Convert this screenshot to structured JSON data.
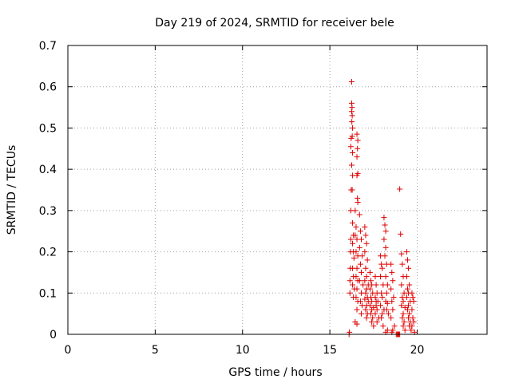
{
  "chart_data": {
    "type": "scatter",
    "title": "Day 219 of 2024, SRMTID for receiver bele",
    "xlabel": "GPS time / hours",
    "ylabel": "SRMTID / TECUs",
    "xlim": [
      0,
      24
    ],
    "ylim": [
      0,
      0.7
    ],
    "xticks": [
      0,
      5,
      10,
      15,
      20
    ],
    "xtick_labels": [
      "0",
      "5",
      "10",
      "15",
      "20"
    ],
    "yticks": [
      0,
      0.1,
      0.2,
      0.3,
      0.4,
      0.5,
      0.6,
      0.7
    ],
    "ytick_labels": [
      "0",
      "0.1",
      "0.2",
      "0.3",
      "0.4",
      "0.5",
      "0.6",
      "0.7"
    ],
    "grid": true,
    "marker": "+",
    "color": "#e00000",
    "series": [
      {
        "name": "bele",
        "points": [
          [
            16.1,
            0.0
          ],
          [
            16.12,
            0.005
          ],
          [
            16.15,
            0.1
          ],
          [
            16.15,
            0.13
          ],
          [
            16.17,
            0.16
          ],
          [
            16.18,
            0.2
          ],
          [
            16.2,
            0.23
          ],
          [
            16.25,
            0.612
          ],
          [
            16.25,
            0.56
          ],
          [
            16.27,
            0.55
          ],
          [
            16.25,
            0.54
          ],
          [
            16.28,
            0.53
          ],
          [
            16.26,
            0.515
          ],
          [
            16.3,
            0.5
          ],
          [
            16.22,
            0.475
          ],
          [
            16.28,
            0.48
          ],
          [
            16.2,
            0.455
          ],
          [
            16.3,
            0.44
          ],
          [
            16.25,
            0.41
          ],
          [
            16.3,
            0.385
          ],
          [
            16.28,
            0.35
          ],
          [
            16.22,
            0.35
          ],
          [
            16.2,
            0.3
          ],
          [
            16.3,
            0.27
          ],
          [
            16.35,
            0.24
          ],
          [
            16.3,
            0.22
          ],
          [
            16.35,
            0.2
          ],
          [
            16.38,
            0.185
          ],
          [
            16.3,
            0.16
          ],
          [
            16.35,
            0.14
          ],
          [
            16.3,
            0.12
          ],
          [
            16.4,
            0.11
          ],
          [
            16.35,
            0.09
          ],
          [
            16.55,
            0.485
          ],
          [
            16.6,
            0.47
          ],
          [
            16.58,
            0.45
          ],
          [
            16.55,
            0.43
          ],
          [
            16.6,
            0.39
          ],
          [
            16.55,
            0.385
          ],
          [
            16.58,
            0.33
          ],
          [
            16.6,
            0.32
          ],
          [
            16.45,
            0.3
          ],
          [
            16.5,
            0.26
          ],
          [
            16.45,
            0.24
          ],
          [
            16.55,
            0.23
          ],
          [
            16.5,
            0.2
          ],
          [
            16.6,
            0.19
          ],
          [
            16.55,
            0.16
          ],
          [
            16.5,
            0.14
          ],
          [
            16.6,
            0.13
          ],
          [
            16.55,
            0.11
          ],
          [
            16.5,
            0.09
          ],
          [
            16.6,
            0.08
          ],
          [
            16.55,
            0.06
          ],
          [
            16.45,
            0.03
          ],
          [
            16.55,
            0.025
          ],
          [
            16.7,
            0.29
          ],
          [
            16.75,
            0.25
          ],
          [
            16.8,
            0.23
          ],
          [
            16.7,
            0.21
          ],
          [
            16.85,
            0.19
          ],
          [
            16.75,
            0.17
          ],
          [
            16.8,
            0.15
          ],
          [
            16.7,
            0.13
          ],
          [
            16.9,
            0.12
          ],
          [
            16.8,
            0.1
          ],
          [
            16.75,
            0.08
          ],
          [
            16.85,
            0.07
          ],
          [
            16.8,
            0.05
          ],
          [
            17.0,
            0.26
          ],
          [
            17.05,
            0.24
          ],
          [
            17.1,
            0.22
          ],
          [
            17.0,
            0.2
          ],
          [
            17.15,
            0.18
          ],
          [
            17.05,
            0.16
          ],
          [
            17.1,
            0.14
          ],
          [
            17.0,
            0.13
          ],
          [
            17.2,
            0.12
          ],
          [
            17.1,
            0.11
          ],
          [
            17.05,
            0.1
          ],
          [
            17.15,
            0.09
          ],
          [
            17.0,
            0.085
          ],
          [
            17.2,
            0.08
          ],
          [
            17.1,
            0.07
          ],
          [
            17.05,
            0.06
          ],
          [
            17.15,
            0.05
          ],
          [
            17.1,
            0.04
          ],
          [
            17.3,
            0.15
          ],
          [
            17.35,
            0.13
          ],
          [
            17.4,
            0.12
          ],
          [
            17.3,
            0.11
          ],
          [
            17.45,
            0.1
          ],
          [
            17.35,
            0.09
          ],
          [
            17.4,
            0.08
          ],
          [
            17.3,
            0.07
          ],
          [
            17.5,
            0.065
          ],
          [
            17.4,
            0.06
          ],
          [
            17.35,
            0.05
          ],
          [
            17.45,
            0.04
          ],
          [
            17.4,
            0.03
          ],
          [
            17.5,
            0.02
          ],
          [
            17.6,
            0.14
          ],
          [
            17.65,
            0.12
          ],
          [
            17.7,
            0.1
          ],
          [
            17.6,
            0.09
          ],
          [
            17.75,
            0.08
          ],
          [
            17.65,
            0.07
          ],
          [
            17.7,
            0.06
          ],
          [
            17.6,
            0.05
          ],
          [
            17.8,
            0.04
          ],
          [
            17.7,
            0.03
          ],
          [
            17.65,
            0.08
          ],
          [
            17.9,
            0.19
          ],
          [
            17.95,
            0.17
          ],
          [
            18.0,
            0.16
          ],
          [
            17.9,
            0.14
          ],
          [
            18.05,
            0.12
          ],
          [
            17.95,
            0.1
          ],
          [
            18.0,
            0.09
          ],
          [
            17.9,
            0.07
          ],
          [
            18.1,
            0.06
          ],
          [
            18.0,
            0.05
          ],
          [
            17.95,
            0.04
          ],
          [
            18.05,
            0.02
          ],
          [
            18.1,
            0.283
          ],
          [
            18.15,
            0.265
          ],
          [
            18.2,
            0.25
          ],
          [
            18.1,
            0.23
          ],
          [
            18.2,
            0.21
          ],
          [
            18.15,
            0.19
          ],
          [
            18.25,
            0.17
          ],
          [
            18.2,
            0.14
          ],
          [
            18.3,
            0.12
          ],
          [
            18.25,
            0.1
          ],
          [
            18.2,
            0.08
          ],
          [
            18.3,
            0.075
          ],
          [
            18.25,
            0.06
          ],
          [
            18.35,
            0.05
          ],
          [
            18.3,
            0.01
          ],
          [
            18.2,
            0.005
          ],
          [
            18.5,
            0.17
          ],
          [
            18.55,
            0.15
          ],
          [
            18.6,
            0.13
          ],
          [
            18.5,
            0.11
          ],
          [
            18.65,
            0.09
          ],
          [
            18.55,
            0.08
          ],
          [
            18.6,
            0.06
          ],
          [
            18.5,
            0.04
          ],
          [
            18.7,
            0.02
          ],
          [
            18.6,
            0.01
          ],
          [
            18.55,
            0.005
          ],
          [
            18.8,
            0.0
          ],
          [
            18.85,
            0.0
          ],
          [
            18.9,
            0.0
          ],
          [
            18.95,
            0.0
          ],
          [
            19.0,
            0.0
          ],
          [
            19.0,
            0.352
          ],
          [
            19.05,
            0.243
          ],
          [
            19.1,
            0.195
          ],
          [
            19.15,
            0.17
          ],
          [
            19.2,
            0.14
          ],
          [
            19.1,
            0.12
          ],
          [
            19.25,
            0.1
          ],
          [
            19.15,
            0.09
          ],
          [
            19.2,
            0.08
          ],
          [
            19.1,
            0.07
          ],
          [
            19.3,
            0.065
          ],
          [
            19.2,
            0.05
          ],
          [
            19.15,
            0.04
          ],
          [
            19.25,
            0.03
          ],
          [
            19.2,
            0.02
          ],
          [
            19.3,
            0.01
          ],
          [
            19.4,
            0.2
          ],
          [
            19.45,
            0.18
          ],
          [
            19.5,
            0.16
          ],
          [
            19.4,
            0.14
          ],
          [
            19.55,
            0.12
          ],
          [
            19.45,
            0.11
          ],
          [
            19.5,
            0.1
          ],
          [
            19.4,
            0.09
          ],
          [
            19.6,
            0.08
          ],
          [
            19.5,
            0.07
          ],
          [
            19.45,
            0.06
          ],
          [
            19.55,
            0.05
          ],
          [
            19.5,
            0.04
          ],
          [
            19.6,
            0.03
          ],
          [
            19.55,
            0.02
          ],
          [
            19.65,
            0.01
          ],
          [
            19.7,
            0.1
          ],
          [
            19.75,
            0.09
          ],
          [
            19.8,
            0.08
          ],
          [
            19.7,
            0.06
          ],
          [
            19.75,
            0.04
          ],
          [
            19.8,
            0.03
          ],
          [
            19.7,
            0.02
          ],
          [
            19.85,
            0.005
          ]
        ]
      }
    ]
  }
}
